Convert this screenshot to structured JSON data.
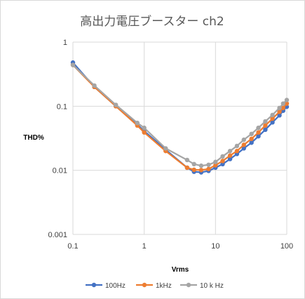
{
  "chart_data": {
    "type": "line",
    "title": "高出力電圧ブースター ch2",
    "xlabel": "Vrms",
    "ylabel": "THD%",
    "xscale": "log",
    "yscale": "log",
    "xlim": [
      0.1,
      100
    ],
    "ylim": [
      0.001,
      1
    ],
    "x_ticks": [
      "0.1",
      "1",
      "10",
      "100"
    ],
    "y_ticks": [
      "0.001",
      "0.01",
      "0.1",
      "1"
    ],
    "grid": true,
    "legend_position": "bottom",
    "series": [
      {
        "name": "100Hz",
        "color": "#4472c4",
        "points": [
          [
            0.1,
            0.48
          ],
          [
            0.2,
            0.2
          ],
          [
            0.4,
            0.1
          ],
          [
            0.8,
            0.052
          ],
          [
            1,
            0.041
          ],
          [
            2,
            0.021
          ],
          [
            4,
            0.011
          ],
          [
            5,
            0.0095
          ],
          [
            6.3,
            0.0093
          ],
          [
            8,
            0.0098
          ],
          [
            10,
            0.011
          ],
          [
            12.6,
            0.0125
          ],
          [
            16,
            0.015
          ],
          [
            20,
            0.018
          ],
          [
            25,
            0.022
          ],
          [
            32,
            0.027
          ],
          [
            40,
            0.034
          ],
          [
            50,
            0.043
          ],
          [
            63,
            0.056
          ],
          [
            79,
            0.072
          ],
          [
            89,
            0.085
          ],
          [
            100,
            0.098
          ]
        ]
      },
      {
        "name": "1kHz",
        "color": "#ed7d31",
        "points": [
          [
            0.1,
            0.44
          ],
          [
            0.2,
            0.2
          ],
          [
            0.4,
            0.1
          ],
          [
            0.8,
            0.05
          ],
          [
            1,
            0.039
          ],
          [
            2,
            0.02
          ],
          [
            4,
            0.011
          ],
          [
            5,
            0.0102
          ],
          [
            6.3,
            0.0101
          ],
          [
            8,
            0.0105
          ],
          [
            10,
            0.012
          ],
          [
            12.6,
            0.014
          ],
          [
            16,
            0.017
          ],
          [
            20,
            0.02
          ],
          [
            25,
            0.025
          ],
          [
            32,
            0.031
          ],
          [
            40,
            0.039
          ],
          [
            50,
            0.05
          ],
          [
            63,
            0.064
          ],
          [
            79,
            0.082
          ],
          [
            89,
            0.094
          ],
          [
            100,
            0.11
          ]
        ]
      },
      {
        "name": "10 k Hz",
        "color": "#a5a5a5",
        "points": [
          [
            0.1,
            0.44
          ],
          [
            0.2,
            0.21
          ],
          [
            0.4,
            0.105
          ],
          [
            0.8,
            0.055
          ],
          [
            1,
            0.046
          ],
          [
            2,
            0.022
          ],
          [
            4,
            0.0145
          ],
          [
            5,
            0.0125
          ],
          [
            6.3,
            0.0118
          ],
          [
            8,
            0.0122
          ],
          [
            10,
            0.0135
          ],
          [
            12.6,
            0.0165
          ],
          [
            16,
            0.02
          ],
          [
            20,
            0.024
          ],
          [
            25,
            0.03
          ],
          [
            32,
            0.037
          ],
          [
            40,
            0.046
          ],
          [
            50,
            0.058
          ],
          [
            63,
            0.073
          ],
          [
            79,
            0.094
          ],
          [
            89,
            0.11
          ],
          [
            100,
            0.125
          ]
        ]
      }
    ]
  }
}
